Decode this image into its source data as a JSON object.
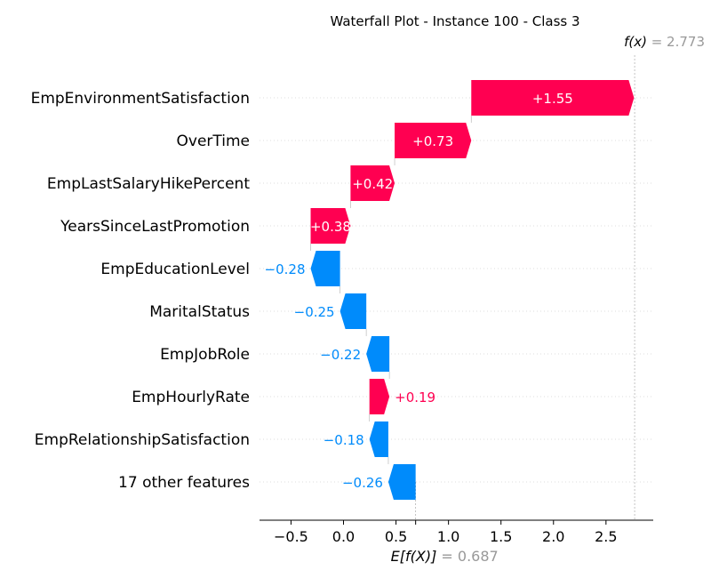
{
  "chart_data": {
    "type": "waterfall",
    "title": "Waterfall Plot - Instance 100 - Class 3",
    "base_value": 0.687,
    "base_value_text": "0.687",
    "fx_value": 2.773,
    "fx_value_text": "2.773",
    "fx_label": "f(x)",
    "ex_label": "E[f(X)]",
    "xlim": [
      -0.8,
      2.95
    ],
    "xticks": [
      -0.5,
      0.0,
      0.5,
      1.0,
      1.5,
      2.0,
      2.5
    ],
    "xtick_labels": [
      "−0.5",
      "0.0",
      "0.5",
      "1.0",
      "1.5",
      "2.0",
      "2.5"
    ],
    "features": [
      {
        "name": "EmpEnvironmentSatisfaction",
        "value": 1.55,
        "label": "+1.55"
      },
      {
        "name": "OverTime",
        "value": 0.73,
        "label": "+0.73"
      },
      {
        "name": "EmpLastSalaryHikePercent",
        "value": 0.42,
        "label": "+0.42"
      },
      {
        "name": "YearsSinceLastPromotion",
        "value": 0.38,
        "label": "+0.38"
      },
      {
        "name": "EmpEducationLevel",
        "value": -0.28,
        "label": "−0.28"
      },
      {
        "name": "MaritalStatus",
        "value": -0.25,
        "label": "−0.25"
      },
      {
        "name": "EmpJobRole",
        "value": -0.22,
        "label": "−0.22"
      },
      {
        "name": "EmpHourlyRate",
        "value": 0.19,
        "label": "+0.19"
      },
      {
        "name": "EmpRelationshipSatisfaction",
        "value": -0.18,
        "label": "−0.18"
      },
      {
        "name": "17 other features",
        "value": -0.26,
        "label": "−0.26"
      }
    ],
    "colors": {
      "positive": "#ff0051",
      "negative": "#008bfb",
      "muted": "#999999"
    }
  }
}
